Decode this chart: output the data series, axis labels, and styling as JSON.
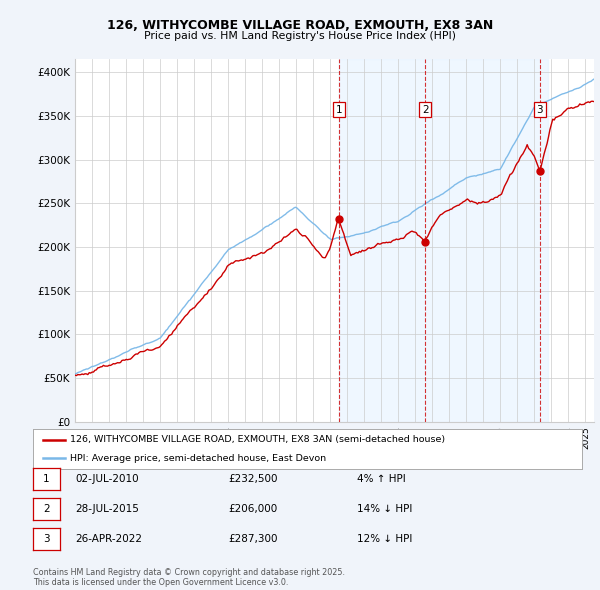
{
  "title_line1": "126, WITHYCOMBE VILLAGE ROAD, EXMOUTH, EX8 3AN",
  "title_line2": "Price paid vs. HM Land Registry's House Price Index (HPI)",
  "ylabel_ticks": [
    "£0",
    "£50K",
    "£100K",
    "£150K",
    "£200K",
    "£250K",
    "£300K",
    "£350K",
    "£400K"
  ],
  "ytick_values": [
    0,
    50000,
    100000,
    150000,
    200000,
    250000,
    300000,
    350000,
    400000
  ],
  "ylim": [
    0,
    415000
  ],
  "xlim_start": 1995.0,
  "xlim_end": 2025.5,
  "sale_dates": [
    2010.5,
    2015.58,
    2022.32
  ],
  "sale_prices": [
    232500,
    206000,
    287300
  ],
  "sale_labels": [
    "1",
    "2",
    "3"
  ],
  "sale_info": [
    {
      "label": "1",
      "date": "02-JUL-2010",
      "price": "£232,500",
      "hpi": "4% ↑ HPI"
    },
    {
      "label": "2",
      "date": "28-JUL-2015",
      "price": "£206,000",
      "hpi": "14% ↓ HPI"
    },
    {
      "label": "3",
      "date": "26-APR-2022",
      "price": "£287,300",
      "hpi": "12% ↓ HPI"
    }
  ],
  "legend_line1": "126, WITHYCOMBE VILLAGE ROAD, EXMOUTH, EX8 3AN (semi-detached house)",
  "legend_line2": "HPI: Average price, semi-detached house, East Devon",
  "footer": "Contains HM Land Registry data © Crown copyright and database right 2025.\nThis data is licensed under the Open Government Licence v3.0.",
  "hpi_color": "#7ab8e8",
  "price_color": "#cc0000",
  "background_color": "#f0f4fa",
  "plot_bg": "#ffffff",
  "grid_color": "#cccccc",
  "shade_color": "#ddeeff"
}
